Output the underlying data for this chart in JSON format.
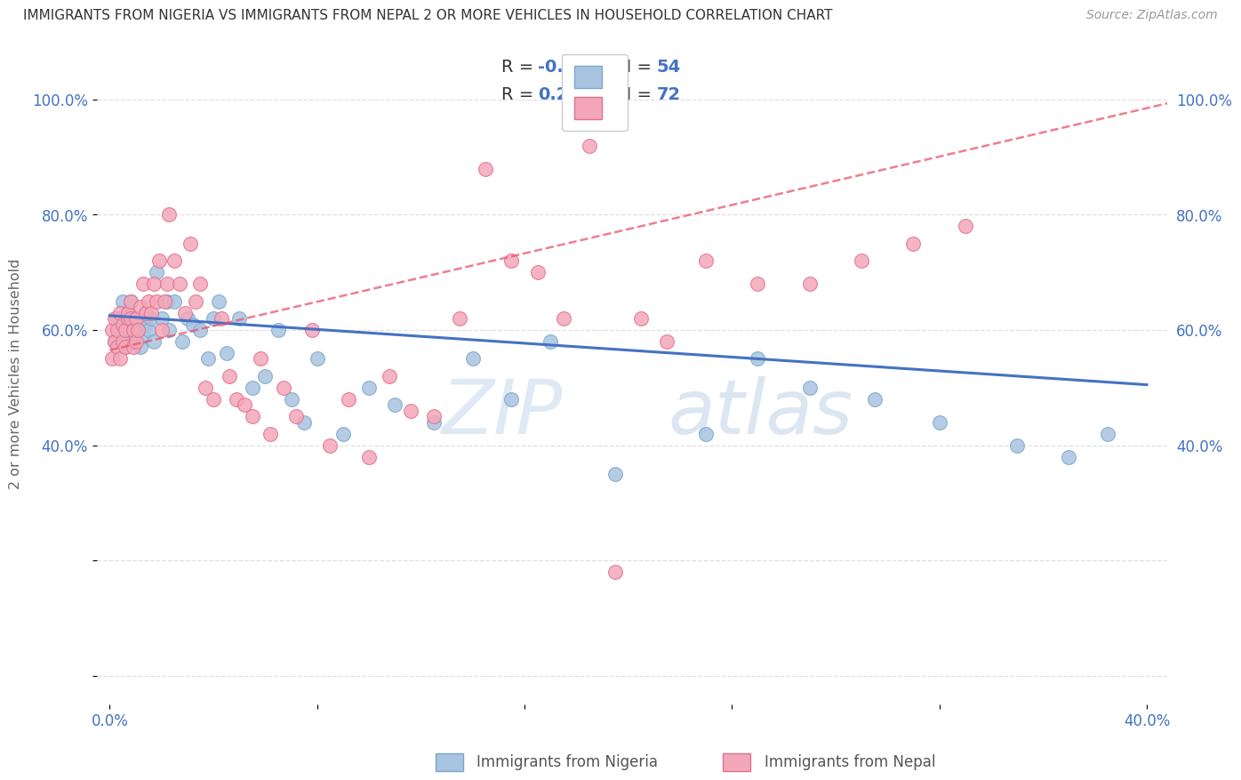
{
  "title": "IMMIGRANTS FROM NIGERIA VS IMMIGRANTS FROM NEPAL 2 OR MORE VEHICLES IN HOUSEHOLD CORRELATION CHART",
  "source": "Source: ZipAtlas.com",
  "ylabel": "2 or more Vehicles in Household",
  "xlim": [
    0.0,
    0.4
  ],
  "ylim": [
    0.0,
    1.05
  ],
  "nigeria_color": "#a8c4e0",
  "nepal_color": "#f4a7b9",
  "nigeria_edge": "#7ba7cc",
  "nepal_edge": "#e07090",
  "trend_nigeria_color": "#4472c4",
  "trend_nepal_color": "#e8546a",
  "R_nigeria": -0.127,
  "N_nigeria": 54,
  "R_nepal": 0.23,
  "N_nepal": 72,
  "watermark_zip": "ZIP",
  "watermark_atlas": "atlas",
  "background_color": "#ffffff",
  "grid_color": "#dddddd",
  "nigeria_x": [
    0.002,
    0.003,
    0.004,
    0.005,
    0.005,
    0.006,
    0.006,
    0.007,
    0.008,
    0.009,
    0.01,
    0.011,
    0.012,
    0.013,
    0.014,
    0.015,
    0.016,
    0.017,
    0.018,
    0.02,
    0.022,
    0.023,
    0.025,
    0.028,
    0.03,
    0.032,
    0.035,
    0.038,
    0.04,
    0.042,
    0.045,
    0.05,
    0.055,
    0.06,
    0.065,
    0.07,
    0.075,
    0.08,
    0.09,
    0.1,
    0.11,
    0.125,
    0.14,
    0.155,
    0.17,
    0.195,
    0.23,
    0.25,
    0.27,
    0.295,
    0.32,
    0.35,
    0.37,
    0.385
  ],
  "nigeria_y": [
    0.58,
    0.62,
    0.6,
    0.58,
    0.65,
    0.6,
    0.57,
    0.63,
    0.65,
    0.58,
    0.6,
    0.62,
    0.57,
    0.59,
    0.61,
    0.6,
    0.62,
    0.58,
    0.7,
    0.62,
    0.65,
    0.6,
    0.65,
    0.58,
    0.62,
    0.61,
    0.6,
    0.55,
    0.62,
    0.65,
    0.56,
    0.62,
    0.5,
    0.52,
    0.6,
    0.48,
    0.44,
    0.55,
    0.42,
    0.5,
    0.47,
    0.44,
    0.55,
    0.48,
    0.58,
    0.35,
    0.42,
    0.55,
    0.5,
    0.48,
    0.44,
    0.4,
    0.38,
    0.42
  ],
  "nepal_x": [
    0.001,
    0.001,
    0.002,
    0.002,
    0.003,
    0.003,
    0.004,
    0.004,
    0.005,
    0.005,
    0.006,
    0.006,
    0.007,
    0.007,
    0.008,
    0.008,
    0.009,
    0.009,
    0.01,
    0.01,
    0.011,
    0.012,
    0.013,
    0.014,
    0.015,
    0.016,
    0.017,
    0.018,
    0.019,
    0.02,
    0.021,
    0.022,
    0.023,
    0.025,
    0.027,
    0.029,
    0.031,
    0.033,
    0.035,
    0.037,
    0.04,
    0.043,
    0.046,
    0.049,
    0.052,
    0.055,
    0.058,
    0.062,
    0.067,
    0.072,
    0.078,
    0.085,
    0.092,
    0.1,
    0.108,
    0.116,
    0.125,
    0.135,
    0.145,
    0.155,
    0.165,
    0.175,
    0.185,
    0.195,
    0.205,
    0.215,
    0.23,
    0.25,
    0.27,
    0.29,
    0.31,
    0.33
  ],
  "nepal_y": [
    0.6,
    0.55,
    0.58,
    0.62,
    0.57,
    0.6,
    0.55,
    0.63,
    0.58,
    0.61,
    0.57,
    0.6,
    0.62,
    0.63,
    0.65,
    0.62,
    0.6,
    0.57,
    0.58,
    0.62,
    0.6,
    0.64,
    0.68,
    0.63,
    0.65,
    0.63,
    0.68,
    0.65,
    0.72,
    0.6,
    0.65,
    0.68,
    0.8,
    0.72,
    0.68,
    0.63,
    0.75,
    0.65,
    0.68,
    0.5,
    0.48,
    0.62,
    0.52,
    0.48,
    0.47,
    0.45,
    0.55,
    0.42,
    0.5,
    0.45,
    0.6,
    0.4,
    0.48,
    0.38,
    0.52,
    0.46,
    0.45,
    0.62,
    0.88,
    0.72,
    0.7,
    0.62,
    0.92,
    0.18,
    0.62,
    0.58,
    0.72,
    0.68,
    0.68,
    0.72,
    0.75,
    0.78
  ]
}
